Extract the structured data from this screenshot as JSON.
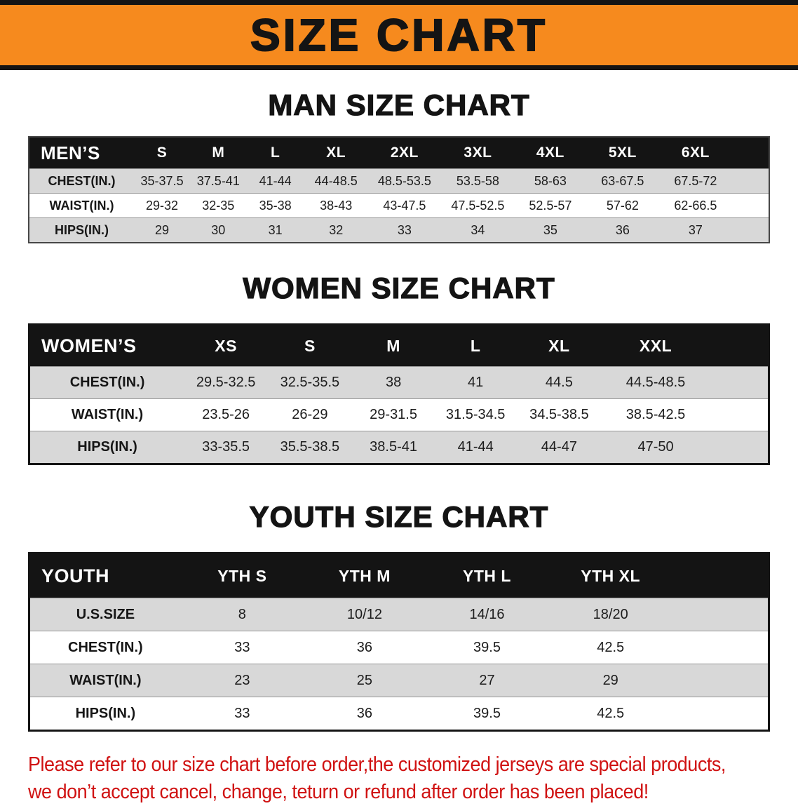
{
  "banner": {
    "title": "SIZE CHART"
  },
  "sections": [
    {
      "id": "men",
      "title": "MAN SIZE CHART",
      "header": [
        "MEN’S",
        "S",
        "M",
        "L",
        "XL",
        "2XL",
        "3XL",
        "4XL",
        "5XL",
        "6XL"
      ],
      "rows": [
        [
          "CHEST(IN.)",
          "35-37.5",
          "37.5-41",
          "41-44",
          "44-48.5",
          "48.5-53.5",
          "53.5-58",
          "58-63",
          "63-67.5",
          "67.5-72"
        ],
        [
          "WAIST(IN.)",
          "29-32",
          "32-35",
          "35-38",
          "38-43",
          "43-47.5",
          "47.5-52.5",
          "52.5-57",
          "57-62",
          "62-66.5"
        ],
        [
          "HIPS(IN.)",
          "29",
          "30",
          "31",
          "32",
          "33",
          "34",
          "35",
          "36",
          "37"
        ]
      ]
    },
    {
      "id": "women",
      "title": "WOMEN SIZE CHART",
      "header": [
        "WOMEN’S",
        "XS",
        "S",
        "M",
        "L",
        "XL",
        "XXL"
      ],
      "rows": [
        [
          "CHEST(IN.)",
          "29.5-32.5",
          "32.5-35.5",
          "38",
          "41",
          "44.5",
          "44.5-48.5"
        ],
        [
          "WAIST(IN.)",
          "23.5-26",
          "26-29",
          "29-31.5",
          "31.5-34.5",
          "34.5-38.5",
          "38.5-42.5"
        ],
        [
          "HIPS(IN.)",
          "33-35.5",
          "35.5-38.5",
          "38.5-41",
          "41-44",
          "44-47",
          "47-50"
        ]
      ]
    },
    {
      "id": "youth",
      "title": "YOUTH SIZE CHART",
      "header": [
        "YOUTH",
        "YTH S",
        "YTH M",
        "YTH L",
        "YTH XL"
      ],
      "rows": [
        [
          "U.S.SIZE",
          "8",
          "10/12",
          "14/16",
          "18/20"
        ],
        [
          "CHEST(IN.)",
          "33",
          "36",
          "39.5",
          "42.5"
        ],
        [
          "WAIST(IN.)",
          "23",
          "25",
          "27",
          "29"
        ],
        [
          "HIPS(IN.)",
          "33",
          "36",
          "39.5",
          "42.5"
        ]
      ]
    }
  ],
  "footer": {
    "lines": [
      "Please refer to our size chart before order,the customized jerseys are special products,",
      "we don’t accept cancel, change, teturn or refund after order has been placed!"
    ]
  },
  "colors": {
    "banner_bg": "#f68a1e",
    "table_header_bg": "#141414",
    "row_stripe": "#d8d8d8",
    "notice_red": "#d01212"
  }
}
